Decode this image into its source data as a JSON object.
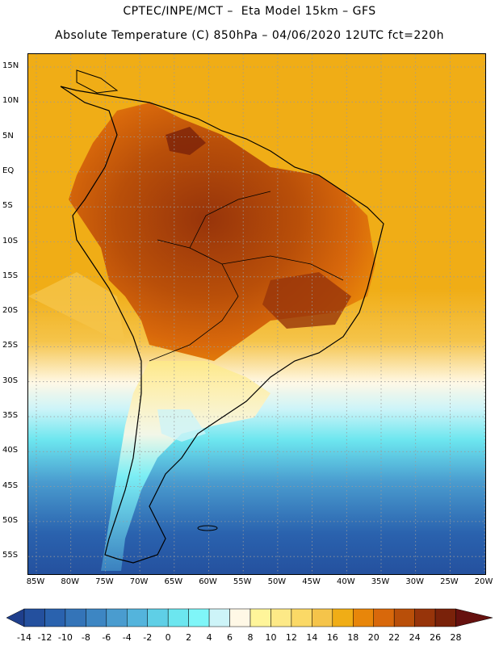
{
  "title_line1": "CPTEC/INPE/MCT –  Eta Model 15km – GFS",
  "title_line2": "Absolute Temperature (C) 850hPa – 04/06/2020 12UTC fct=220h",
  "lat_labels": [
    "15N",
    "10N",
    "5N",
    "EQ",
    "5S",
    "10S",
    "15S",
    "20S",
    "25S",
    "30S",
    "35S",
    "40S",
    "45S",
    "50S",
    "55S"
  ],
  "lon_labels": [
    "85W",
    "80W",
    "75W",
    "70W",
    "65W",
    "60W",
    "55W",
    "50W",
    "45W",
    "40W",
    "35W",
    "30W",
    "25W",
    "20W"
  ],
  "colorbar": {
    "levels": [
      "-14",
      "-12",
      "-10",
      "-8",
      "-6",
      "-4",
      "-2",
      "0",
      "2",
      "4",
      "6",
      "8",
      "10",
      "12",
      "14",
      "16",
      "18",
      "20",
      "22",
      "24",
      "26",
      "28"
    ],
    "colors": [
      "#1f3f8c",
      "#24509e",
      "#2a62ae",
      "#3474b8",
      "#3d86c3",
      "#4a9ccf",
      "#54b4dc",
      "#5fcfe6",
      "#6ce6ef",
      "#7ff6f8",
      "#cdf4f8",
      "#fff8e6",
      "#fff59a",
      "#fde987",
      "#fbd966",
      "#f5c44a",
      "#f0ad16",
      "#e8860a",
      "#d8680b",
      "#b94f09",
      "#97340a",
      "#7a220a",
      "#66110f"
    ]
  },
  "map": {
    "colors": {
      "warm_ocean": "#f0ad16",
      "hot_land": "#b94f09",
      "very_hot": "#7a220a",
      "mild": "#f5c44a",
      "cool": "#6ce6ef",
      "cold": "#3474b8",
      "coastline": "#000000"
    }
  }
}
